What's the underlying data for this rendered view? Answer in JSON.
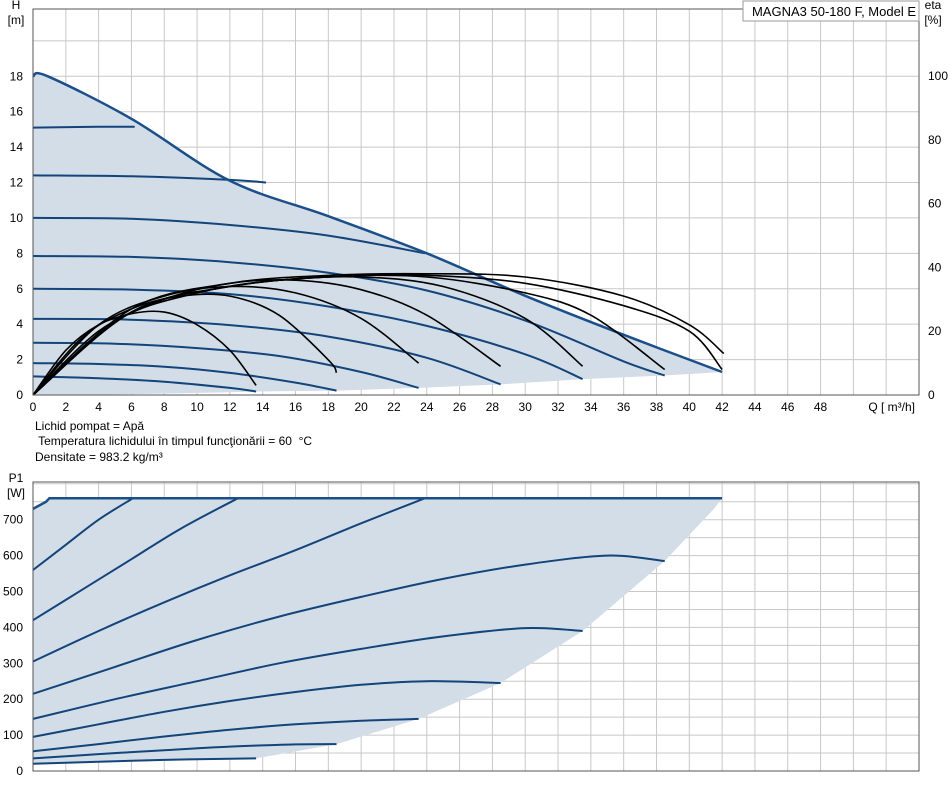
{
  "model_label": "MAGNA3 50-180 F, Model E",
  "info": {
    "line1": "Lichid pompat = Apă",
    "line2": " Temperatura lichidului în timpul funcţionării = 60  °C",
    "line3": "Densitate = 983.2  kg/m³"
  },
  "colors": {
    "curve": "#13447a",
    "region": "#d2dde8",
    "eta": "#000000",
    "grid": "#c8c8c8"
  },
  "chart_data": [
    {
      "type": "line",
      "title": "",
      "ylabel": "H\n[m]",
      "ylabel_right": "eta\n[%]",
      "xlabel": "Q [ m³/h]",
      "xlim": [
        0,
        54
      ],
      "ylim": [
        0,
        21.8
      ],
      "y2lim": [
        0,
        121
      ],
      "xticks": [
        0,
        2,
        4,
        6,
        8,
        10,
        12,
        14,
        16,
        18,
        20,
        22,
        24,
        26,
        28,
        30,
        32,
        34,
        36,
        38,
        40,
        42,
        44,
        46,
        48
      ],
      "yticks": [
        0,
        2,
        4,
        6,
        8,
        10,
        12,
        14,
        16,
        18
      ],
      "y2ticks": [
        0,
        20,
        40,
        60,
        80,
        100
      ],
      "grid": true,
      "max_curve": {
        "name": "max",
        "x": [
          0,
          0.9,
          6,
          12,
          18,
          24,
          30,
          36,
          42
        ],
        "y": [
          18,
          18,
          15.6,
          12.1,
          10.1,
          8.0,
          5.6,
          3.4,
          1.3
        ]
      },
      "min_curve": {
        "x": [
          0,
          3,
          6,
          9,
          12,
          13.6,
          18.5,
          23.5,
          28.5,
          33.5,
          38.5,
          42
        ],
        "y": [
          0,
          0,
          0.05,
          0.1,
          0.15,
          0.2,
          0.25,
          0.4,
          0.6,
          0.9,
          1.1,
          1.3
        ]
      },
      "series": [
        {
          "x": [
            0,
            4,
            8,
            12,
            13.6
          ],
          "y": [
            1.05,
            0.95,
            0.75,
            0.4,
            0.2
          ]
        },
        {
          "x": [
            0,
            4,
            8,
            12,
            16,
            18.5
          ],
          "y": [
            1.8,
            1.75,
            1.6,
            1.25,
            0.7,
            0.25
          ]
        },
        {
          "x": [
            0,
            5,
            10,
            15,
            20,
            23.5
          ],
          "y": [
            2.95,
            2.9,
            2.65,
            2.2,
            1.3,
            0.4
          ]
        },
        {
          "x": [
            0,
            6,
            12,
            18,
            24,
            28.5
          ],
          "y": [
            4.3,
            4.25,
            3.95,
            3.3,
            2.1,
            0.6
          ]
        },
        {
          "x": [
            0,
            6,
            12,
            18,
            24,
            30,
            33.5
          ],
          "y": [
            6.0,
            5.95,
            5.7,
            5.0,
            3.9,
            2.3,
            0.9
          ]
        },
        {
          "x": [
            0,
            6,
            12,
            18,
            24,
            30,
            36,
            38.5
          ],
          "y": [
            7.85,
            7.8,
            7.5,
            6.9,
            5.9,
            4.2,
            1.9,
            1.1
          ]
        },
        {
          "x": [
            0,
            6,
            12,
            18,
            23.9
          ],
          "y": [
            10.0,
            9.95,
            9.6,
            9.0,
            8.0
          ]
        },
        {
          "x": [
            0,
            6,
            12,
            14.2
          ],
          "y": [
            12.4,
            12.35,
            12.15,
            12.0
          ]
        },
        {
          "x": [
            0,
            4,
            6.2
          ],
          "y": [
            15.1,
            15.15,
            15.15
          ]
        }
      ],
      "eta_series": [
        {
          "x": [
            0,
            2,
            4,
            6,
            8,
            10,
            12,
            13.6
          ],
          "y": [
            0,
            14,
            22,
            25.5,
            26,
            22,
            14,
            3
          ]
        },
        {
          "x": [
            0,
            3,
            6,
            9,
            12,
            15,
            18,
            18.5
          ],
          "y": [
            0,
            18,
            27,
            31,
            31,
            25,
            11,
            7
          ]
        },
        {
          "x": [
            0,
            4,
            8,
            12,
            16,
            20,
            23.5
          ],
          "y": [
            0,
            22,
            31,
            34,
            32,
            24,
            10
          ]
        },
        {
          "x": [
            0,
            4,
            8,
            12,
            16,
            20,
            24,
            28.5
          ],
          "y": [
            0,
            20,
            30,
            35,
            36,
            33,
            25,
            9
          ]
        },
        {
          "x": [
            0,
            5,
            10,
            15,
            20,
            25,
            30,
            33.5
          ],
          "y": [
            0,
            23,
            32,
            36,
            37,
            34,
            24,
            9
          ]
        },
        {
          "x": [
            0,
            6,
            12,
            18,
            24,
            30,
            34,
            38.5
          ],
          "y": [
            0,
            26,
            34,
            37,
            37,
            32,
            25,
            8
          ]
        },
        {
          "x": [
            0,
            6,
            12,
            18,
            24,
            30,
            36,
            40,
            42
          ],
          "y": [
            0,
            26,
            34,
            37,
            37.5,
            35,
            28,
            20,
            8
          ]
        },
        {
          "x": [
            0,
            6,
            12,
            18,
            24,
            30,
            36,
            40,
            42.1
          ],
          "y": [
            0,
            27,
            35,
            37.5,
            38,
            37,
            31,
            22,
            13
          ]
        }
      ]
    },
    {
      "type": "line",
      "title": "",
      "ylabel": "P1\n[W]",
      "xlabel": "",
      "xlim": [
        0,
        54
      ],
      "ylim": [
        0,
        805
      ],
      "yticks": [
        0,
        100,
        200,
        300,
        400,
        500,
        600,
        700
      ],
      "grid": true,
      "max_curve": {
        "name": "max",
        "x": [
          0,
          0.8,
          1.0,
          42
        ],
        "y": [
          730,
          750,
          760,
          760
        ]
      },
      "min_curve": {
        "x": [
          0,
          4,
          8,
          13.6,
          18.5,
          23.5,
          28.5,
          33.5,
          38.5,
          41.5,
          42
        ],
        "y": [
          20,
          25,
          28,
          35,
          75,
          145,
          245,
          390,
          585,
          730,
          760
        ]
      },
      "series": [
        {
          "x": [
            0,
            4,
            8,
            12,
            13.6
          ],
          "y": [
            20,
            26,
            31,
            34,
            35
          ]
        },
        {
          "x": [
            0,
            4,
            8,
            12,
            16,
            18.5
          ],
          "y": [
            35,
            47,
            58,
            68,
            74,
            75
          ]
        },
        {
          "x": [
            0,
            4,
            8,
            12,
            16,
            20,
            23.5
          ],
          "y": [
            55,
            75,
            96,
            115,
            130,
            140,
            145
          ]
        },
        {
          "x": [
            0,
            4,
            8,
            12,
            16,
            20,
            24,
            28.5
          ],
          "y": [
            95,
            130,
            165,
            195,
            220,
            240,
            250,
            245
          ]
        },
        {
          "x": [
            0,
            5,
            10,
            15,
            20,
            25,
            30,
            33.5
          ],
          "y": [
            145,
            200,
            250,
            300,
            340,
            375,
            398,
            390
          ]
        },
        {
          "x": [
            0,
            5,
            10,
            15,
            20,
            25,
            30,
            35,
            38.5
          ],
          "y": [
            215,
            290,
            365,
            430,
            485,
            535,
            575,
            600,
            585
          ]
        },
        {
          "x": [
            0,
            4,
            8,
            12,
            16,
            20,
            23.9
          ],
          "y": [
            305,
            390,
            470,
            545,
            615,
            690,
            760
          ]
        },
        {
          "x": [
            0,
            3,
            6,
            9,
            12.5
          ],
          "y": [
            420,
            505,
            590,
            675,
            760
          ]
        },
        {
          "x": [
            0,
            2,
            4,
            6.1
          ],
          "y": [
            560,
            630,
            700,
            760
          ]
        }
      ]
    }
  ]
}
